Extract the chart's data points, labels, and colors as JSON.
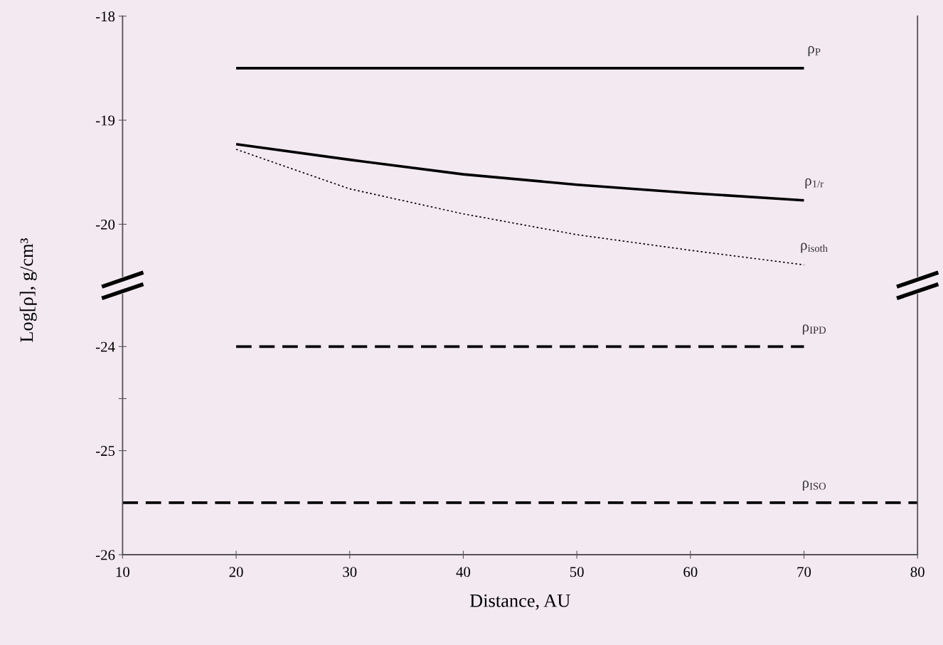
{
  "chart_data": [
    {
      "type": "line",
      "ylabel": "Log[ρ], g/cm³",
      "xlim": [
        10,
        80
      ],
      "ylim": [
        -20.5,
        -18
      ],
      "yticks": [
        -18,
        -19,
        -20
      ],
      "tick_labels": "y",
      "grid": false,
      "legend": false,
      "marker": "none",
      "series": [
        {
          "name": "ρ$_{P}$",
          "color": "#000000",
          "line_style": "solid",
          "x": [
            20,
            70
          ],
          "values": [
            -18.5,
            -18.5
          ]
        },
        {
          "name": "ρ$_{1/r}$",
          "color": "#000000",
          "line_style": "solid",
          "x": [
            20,
            30,
            40,
            50,
            60,
            70
          ],
          "values": [
            -19.23,
            -19.38,
            -19.52,
            -19.62,
            -19.7,
            -19.77
          ]
        },
        {
          "name": "ρ$_{isoth}$",
          "color": "#000000",
          "line_style": "dotted",
          "x": [
            20,
            30,
            40,
            50,
            60,
            70
          ],
          "values": [
            -19.28,
            -19.66,
            -19.9,
            -20.1,
            -20.25,
            -20.39
          ]
        }
      ]
    },
    {
      "type": "line",
      "xlabel": "Distance, AU",
      "xlim": [
        10,
        80
      ],
      "xticks": [
        10,
        20,
        30,
        40,
        50,
        60,
        70,
        80
      ],
      "ylim": [
        -26,
        -23.5
      ],
      "yticks": [
        -24,
        {
          "value": -24.5,
          "label": null
        },
        -25,
        -26
      ],
      "grid": false,
      "legend": false,
      "marker": "none",
      "series": [
        {
          "name": "ρ$_{IPD}$",
          "color": "#000000",
          "line_style": "dashed",
          "x": [
            20,
            70
          ],
          "values": [
            -24,
            -24
          ]
        },
        {
          "name": "ρ$_{ISO}$",
          "color": "#000000",
          "line_style": "dashed",
          "x": [
            10,
            80
          ],
          "values": [
            -25.5,
            -25.5
          ]
        }
      ]
    }
  ]
}
